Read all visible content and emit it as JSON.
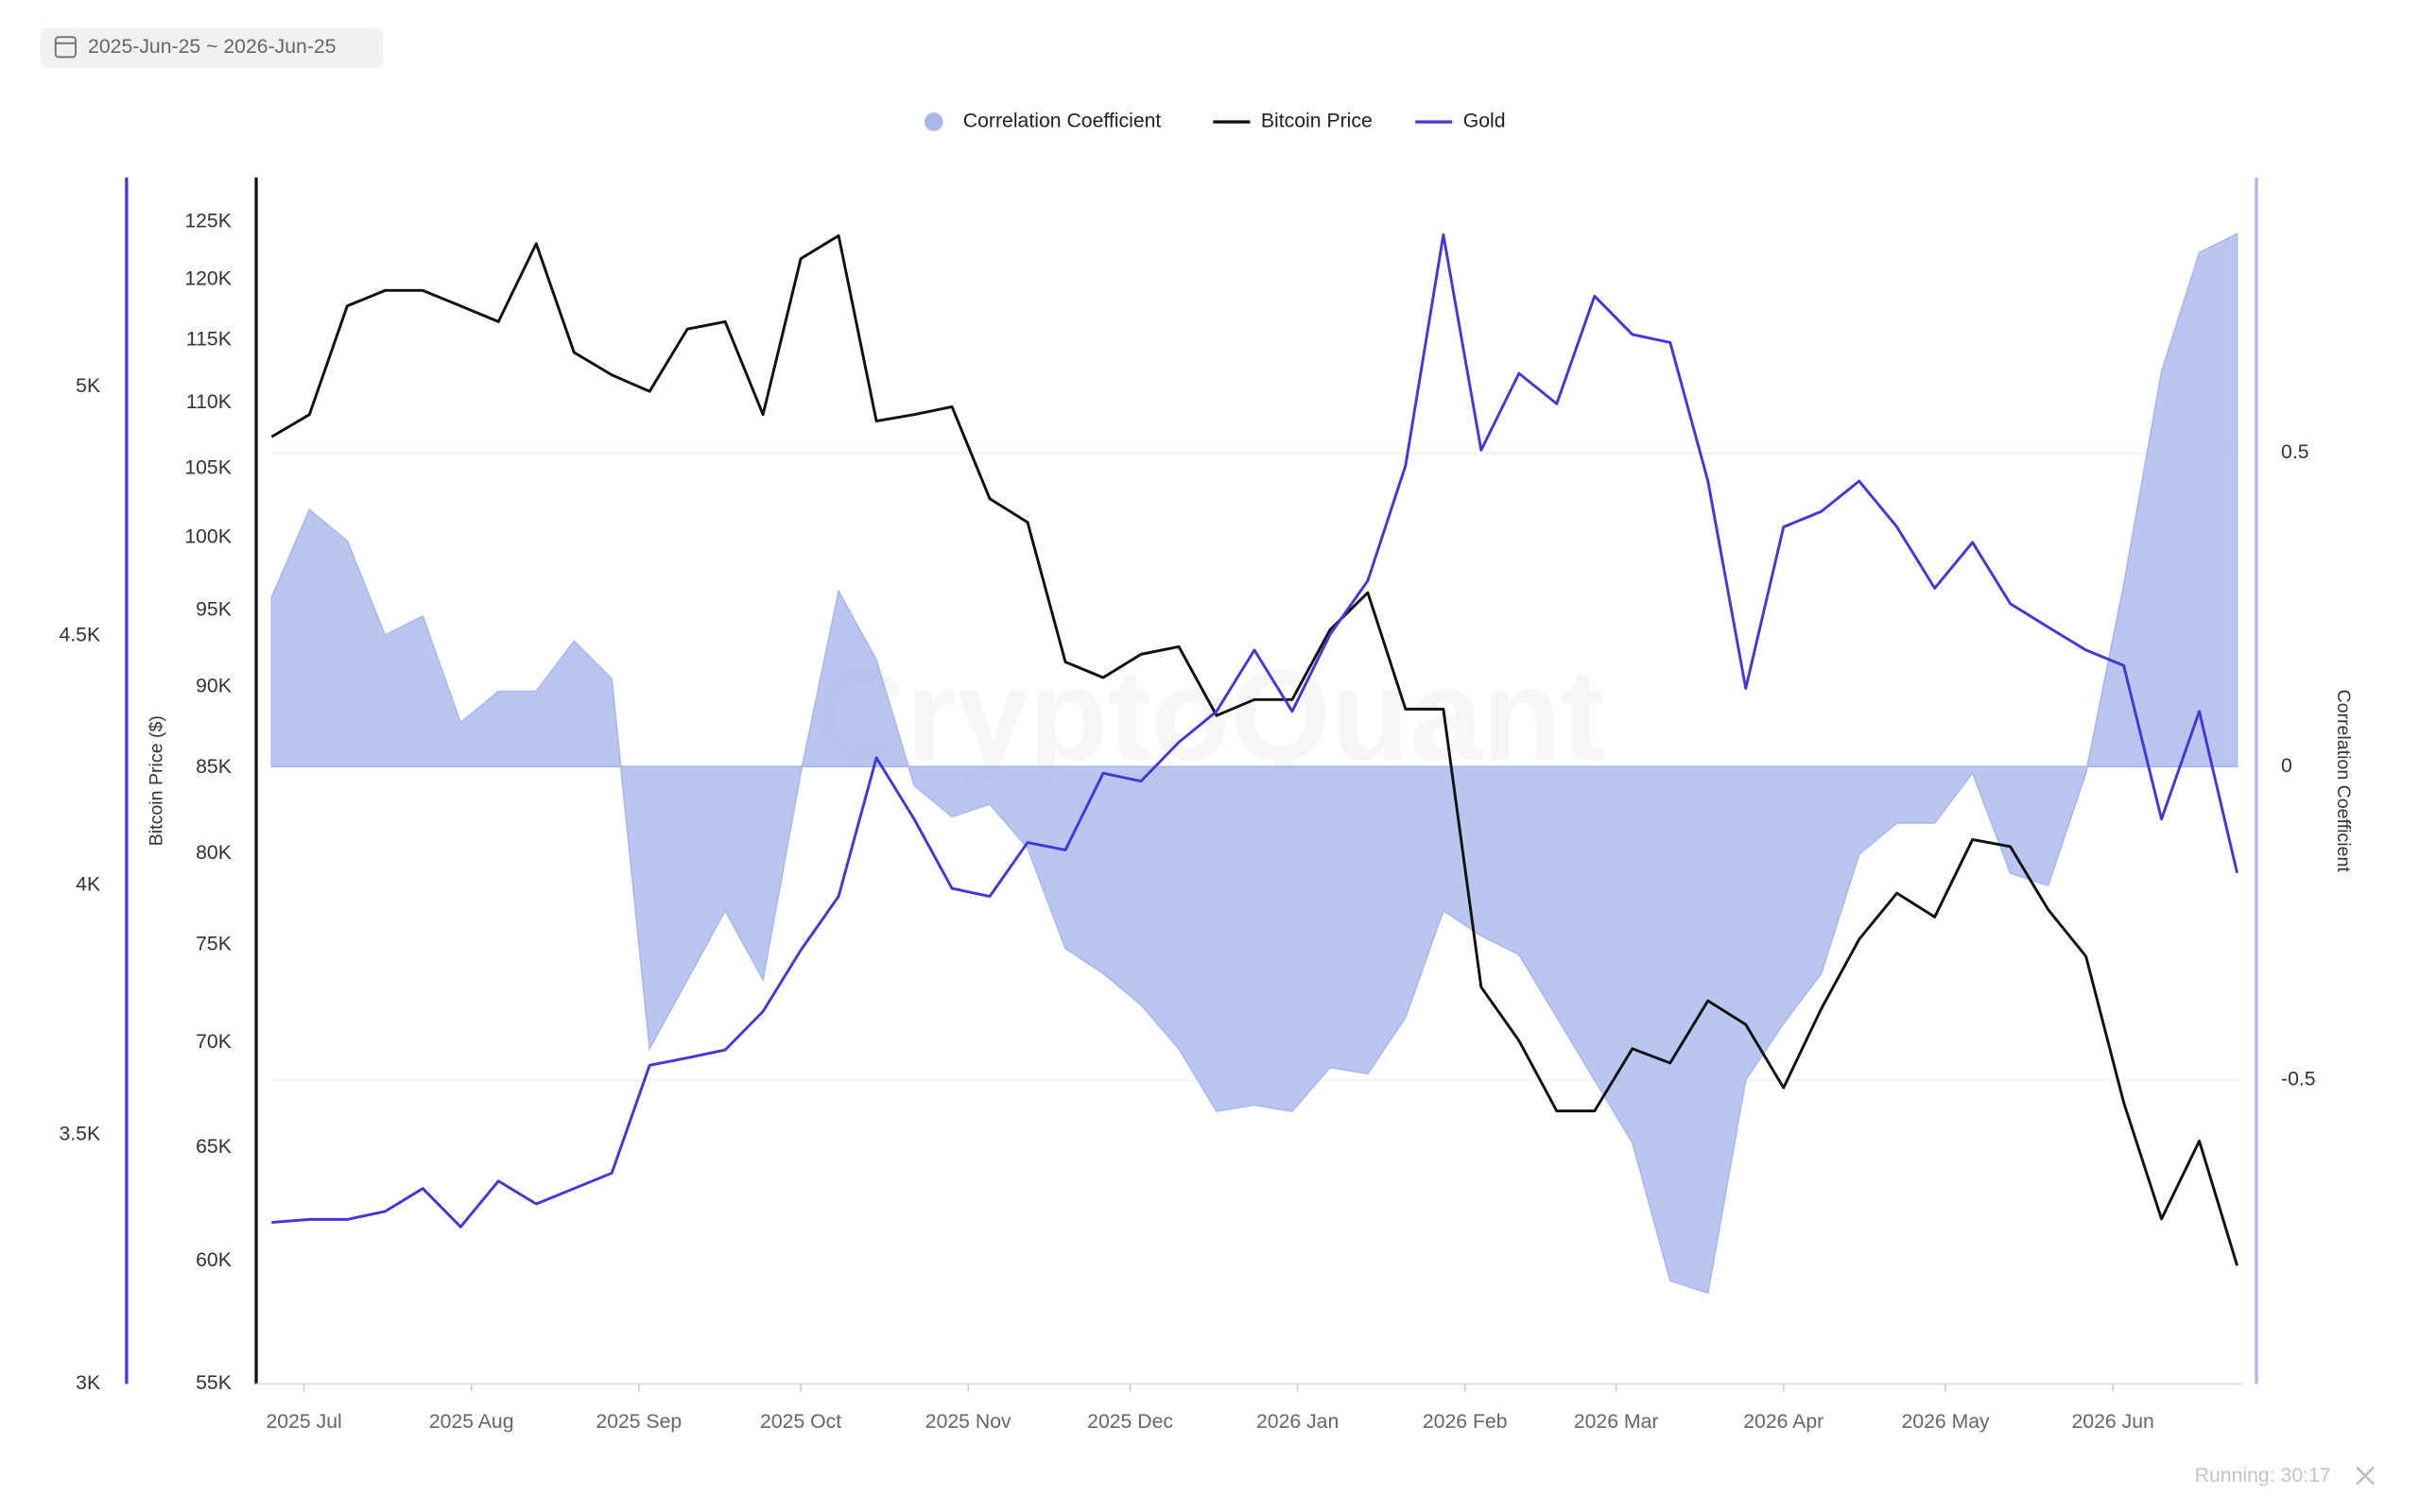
{
  "chart_data": {
    "type": "line",
    "date_range": "2025-Jun-25 ~ 2026-Jun-25",
    "watermark": "CryptoQuant",
    "status_text": "Running: 30:17",
    "x": [
      "2025-06-25",
      "2025-07-02",
      "2025-07-09",
      "2025-07-16",
      "2025-07-23",
      "2025-07-30",
      "2025-08-06",
      "2025-08-13",
      "2025-08-20",
      "2025-08-27",
      "2025-09-03",
      "2025-09-10",
      "2025-09-17",
      "2025-09-24",
      "2025-10-01",
      "2025-10-08",
      "2025-10-15",
      "2025-10-22",
      "2025-10-29",
      "2025-11-05",
      "2025-11-12",
      "2025-11-19",
      "2025-11-26",
      "2025-12-03",
      "2025-12-10",
      "2025-12-17",
      "2025-12-24",
      "2025-12-31",
      "2026-01-07",
      "2026-01-14",
      "2026-01-21",
      "2026-01-28",
      "2026-02-04",
      "2026-02-11",
      "2026-02-18",
      "2026-02-25",
      "2026-03-04",
      "2026-03-11",
      "2026-03-18",
      "2026-03-25",
      "2026-04-01",
      "2026-04-08",
      "2026-04-15",
      "2026-04-22",
      "2026-04-29",
      "2026-05-06",
      "2026-05-13",
      "2026-05-20",
      "2026-05-27",
      "2026-06-03",
      "2026-06-10",
      "2026-06-17",
      "2026-06-24"
    ],
    "xlim": [
      "2025-06-25",
      "2026-06-25"
    ],
    "xticks": [
      {
        "value": "2025-07-01",
        "label": "2025 Jul"
      },
      {
        "value": "2025-08-01",
        "label": "2025 Aug"
      },
      {
        "value": "2025-09-01",
        "label": "2025 Sep"
      },
      {
        "value": "2025-10-01",
        "label": "2025 Oct"
      },
      {
        "value": "2025-11-01",
        "label": "2025 Nov"
      },
      {
        "value": "2025-12-01",
        "label": "2025 Dec"
      },
      {
        "value": "2026-01-01",
        "label": "2026 Jan"
      },
      {
        "value": "2026-02-01",
        "label": "2026 Feb"
      },
      {
        "value": "2026-03-01",
        "label": "2026 Mar"
      },
      {
        "value": "2026-04-01",
        "label": "2026 Apr"
      },
      {
        "value": "2026-05-01",
        "label": "2026 May"
      },
      {
        "value": "2026-06-01",
        "label": "2026 Jun"
      }
    ],
    "ylabel": "Bitcoin Price ($)",
    "yscale": "log",
    "ylim": [
      55000,
      129000
    ],
    "yticks": [
      {
        "value": 55000,
        "label": "55K"
      },
      {
        "value": 60000,
        "label": "60K"
      },
      {
        "value": 65000,
        "label": "65K"
      },
      {
        "value": 70000,
        "label": "70K"
      },
      {
        "value": 75000,
        "label": "75K"
      },
      {
        "value": 80000,
        "label": "80K"
      },
      {
        "value": 85000,
        "label": "85K"
      },
      {
        "value": 90000,
        "label": "90K"
      },
      {
        "value": 95000,
        "label": "95K"
      },
      {
        "value": 100000,
        "label": "100K"
      },
      {
        "value": 105000,
        "label": "105K"
      },
      {
        "value": 110000,
        "label": "110K"
      },
      {
        "value": 115000,
        "label": "115K"
      },
      {
        "value": 120000,
        "label": "120K"
      },
      {
        "value": 125000,
        "label": "125K"
      }
    ],
    "y2label": "Correlation Coefficient",
    "y2lim": [
      -0.985,
      0.94
    ],
    "y2ticks": [
      -0.5,
      0,
      0.5
    ],
    "y2grid": true,
    "y3lim": [
      3000,
      5420
    ],
    "y3ticks": [
      {
        "value": 3000,
        "label": "3K"
      },
      {
        "value": 3500,
        "label": "3.5K"
      },
      {
        "value": 4000,
        "label": "4K"
      },
      {
        "value": 4500,
        "label": "4.5K"
      },
      {
        "value": 5000,
        "label": "5K"
      }
    ],
    "y3color": "#4a35d4",
    "series": [
      {
        "name": "Correlation Coefficient",
        "type": "area",
        "axis": "y2",
        "color": "#a9b8ec",
        "values": [
          0.27,
          0.41,
          0.36,
          0.21,
          0.24,
          0.07,
          0.12,
          0.12,
          0.2,
          0.14,
          -0.45,
          -0.34,
          -0.23,
          -0.34,
          -0.01,
          0.28,
          0.17,
          -0.03,
          -0.08,
          -0.06,
          -0.13,
          -0.29,
          -0.33,
          -0.38,
          -0.45,
          -0.55,
          -0.54,
          -0.55,
          -0.48,
          -0.49,
          -0.4,
          -0.23,
          -0.27,
          -0.3,
          -0.4,
          -0.5,
          -0.6,
          -0.82,
          -0.84,
          -0.5,
          -0.41,
          -0.33,
          -0.14,
          -0.09,
          -0.09,
          -0.01,
          -0.17,
          -0.19,
          -0.01,
          0.29,
          0.63,
          0.82,
          0.85
        ]
      },
      {
        "name": "Bitcoin Price",
        "type": "line",
        "axis": "y",
        "color": "#111111",
        "values": [
          107400,
          109100,
          117800,
          119100,
          119100,
          117800,
          116500,
          123100,
          114000,
          112200,
          110900,
          115900,
          116500,
          109100,
          121800,
          123800,
          108600,
          109100,
          109700,
          102800,
          101100,
          91600,
          90600,
          92100,
          92600,
          88200,
          89200,
          89200,
          93700,
          96200,
          88600,
          88600,
          72800,
          70100,
          66700,
          66700,
          69700,
          69000,
          72100,
          70900,
          67800,
          71700,
          75300,
          77800,
          76500,
          80800,
          80400,
          76900,
          74400,
          67100,
          61800,
          65300,
          59800
        ]
      },
      {
        "name": "Gold",
        "type": "line",
        "axis": "y3",
        "color": "#4a35d4",
        "values": [
          3324,
          3330,
          3330,
          3346,
          3392,
          3315,
          3407,
          3361,
          3392,
          3423,
          3639,
          3654,
          3670,
          3747,
          3870,
          3978,
          4256,
          4133,
          3994,
          3978,
          4086,
          4071,
          4225,
          4209,
          4287,
          4349,
          4472,
          4349,
          4503,
          4611,
          4842,
          5305,
          4873,
          5027,
          4966,
          5182,
          5105,
          5089,
          4811,
          4395,
          4719,
          4750,
          4811,
          4719,
          4596,
          4688,
          4565,
          4518,
          4472,
          4441,
          4133,
          4349,
          4025
        ]
      }
    ]
  }
}
